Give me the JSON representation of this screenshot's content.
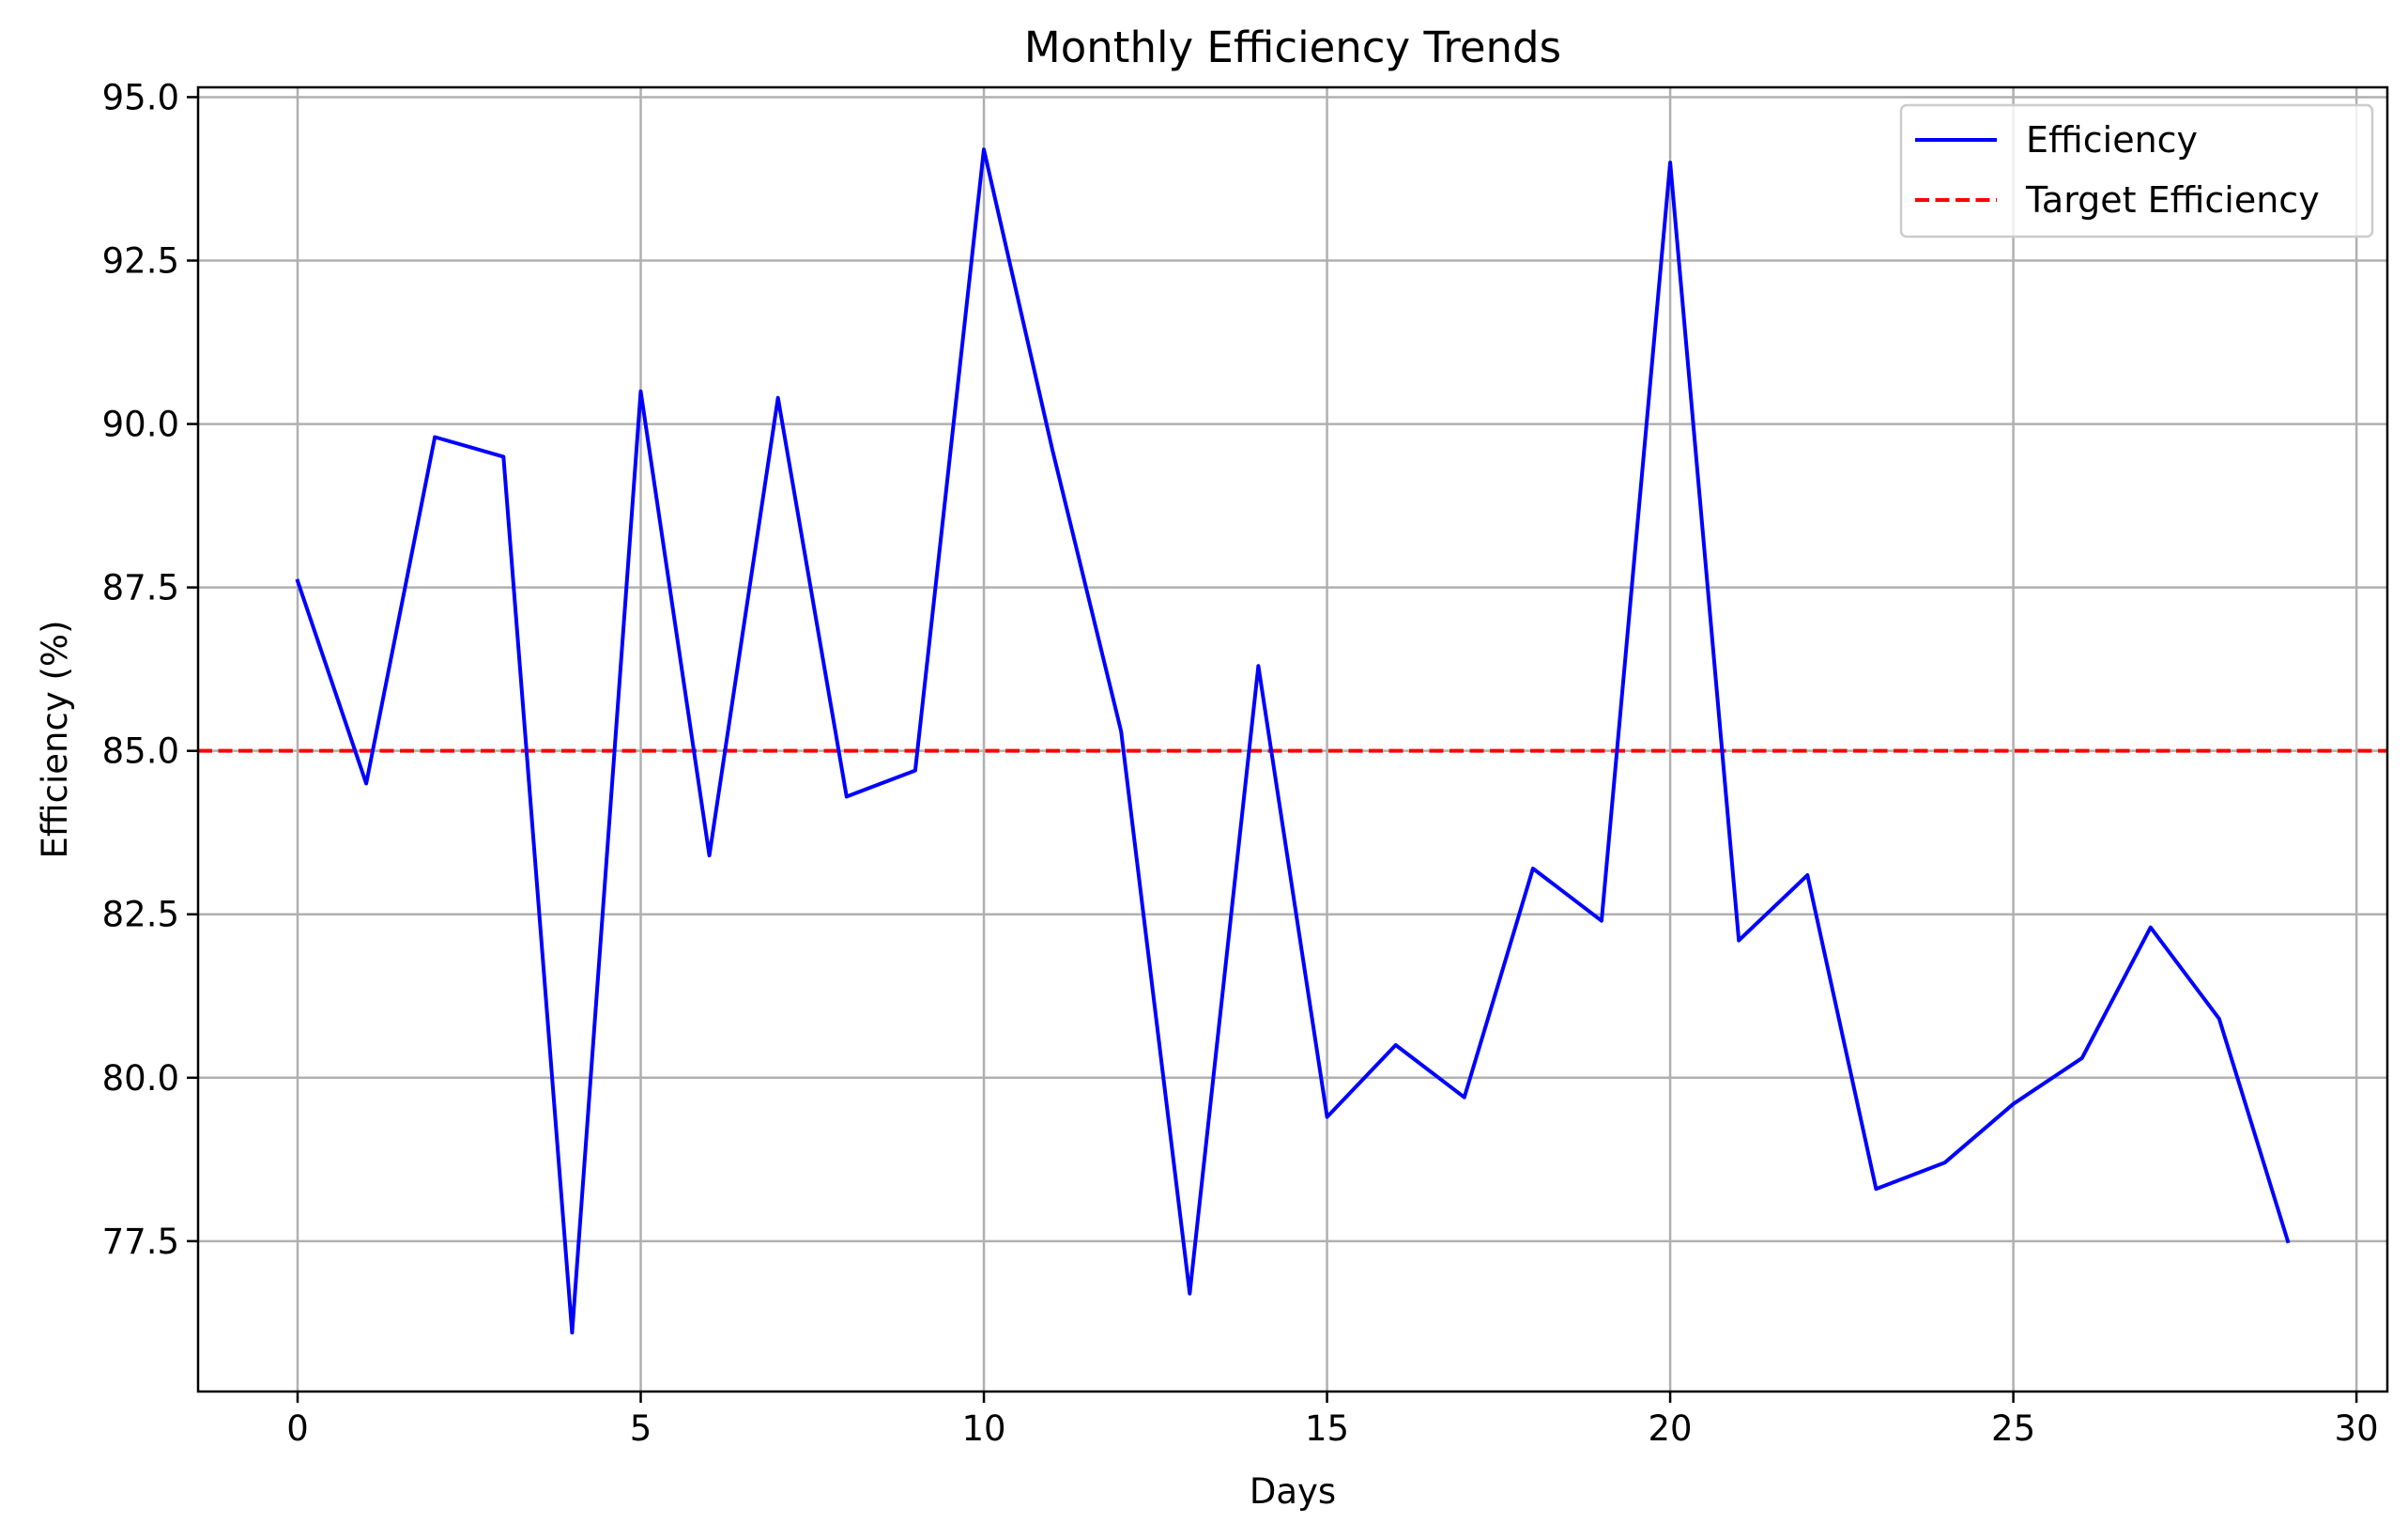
{
  "chart_data": {
    "type": "line",
    "title": "Monthly Efficiency Trends",
    "xlabel": "Days",
    "ylabel": "Efficiency (%)",
    "xlim": [
      -1.45,
      30.45
    ],
    "ylim": [
      75.2,
      95.15
    ],
    "x_ticks": [
      0,
      5,
      10,
      15,
      20,
      25,
      30
    ],
    "x_tick_labels": [
      "0",
      "5",
      "10",
      "15",
      "20",
      "25",
      "30"
    ],
    "y_ticks": [
      77.5,
      80.0,
      82.5,
      85.0,
      87.5,
      90.0,
      92.5,
      95.0
    ],
    "y_tick_labels": [
      "77.5",
      "80.0",
      "82.5",
      "85.0",
      "87.5",
      "90.0",
      "92.5",
      "95.0"
    ],
    "grid": true,
    "legend_position": "top-right",
    "x": [
      0,
      1,
      2,
      3,
      4,
      5,
      6,
      7,
      8,
      9,
      10,
      11,
      12,
      13,
      14,
      15,
      16,
      17,
      18,
      19,
      20,
      21,
      22,
      23,
      24,
      25,
      26,
      27,
      28,
      29
    ],
    "series": [
      {
        "name": "Efficiency",
        "color": "#0000ff",
        "style": "solid",
        "values": [
          87.6,
          84.5,
          89.8,
          89.5,
          76.1,
          90.5,
          83.4,
          90.4,
          84.3,
          84.7,
          94.2,
          89.6,
          85.3,
          76.7,
          86.3,
          79.4,
          80.5,
          79.7,
          83.2,
          82.4,
          94.0,
          82.1,
          83.1,
          78.3,
          78.7,
          79.6,
          80.3,
          82.3,
          80.9,
          77.5
        ]
      }
    ],
    "reference_lines": [
      {
        "name": "Target Efficiency",
        "orientation": "horizontal",
        "value": 85.0,
        "color": "#ff0000",
        "style": "dashed"
      }
    ]
  }
}
